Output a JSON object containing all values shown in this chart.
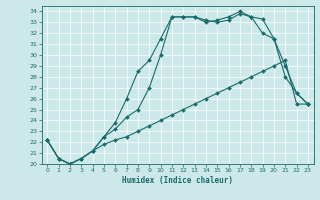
{
  "xlabel": "Humidex (Indice chaleur)",
  "xlim": [
    -0.5,
    23.5
  ],
  "ylim": [
    20,
    34.5
  ],
  "yticks": [
    20,
    21,
    22,
    23,
    24,
    25,
    26,
    27,
    28,
    29,
    30,
    31,
    32,
    33,
    34
  ],
  "xticks": [
    0,
    1,
    2,
    3,
    4,
    5,
    6,
    7,
    8,
    9,
    10,
    11,
    12,
    13,
    14,
    15,
    16,
    17,
    18,
    19,
    20,
    21,
    22,
    23
  ],
  "bg_color": "#cce8e8",
  "line_color": "#1a6b6b",
  "curve1_x": [
    0,
    1,
    2,
    3,
    4,
    5,
    6,
    7,
    8,
    9,
    10,
    11,
    12,
    13,
    14,
    15,
    16,
    17,
    18,
    19,
    20,
    21,
    22,
    23
  ],
  "curve1_y": [
    22.2,
    20.5,
    20.0,
    20.5,
    21.2,
    22.5,
    23.8,
    26.0,
    28.5,
    29.5,
    31.5,
    33.5,
    33.5,
    33.5,
    33.2,
    33.0,
    33.2,
    33.8,
    33.5,
    33.3,
    31.5,
    29.0,
    26.5,
    25.5
  ],
  "curve2_x": [
    0,
    1,
    2,
    3,
    4,
    5,
    6,
    7,
    8,
    9,
    10,
    11,
    12,
    13,
    14,
    15,
    16,
    17,
    18,
    19,
    20,
    21,
    22,
    23
  ],
  "curve2_y": [
    22.2,
    20.5,
    20.0,
    20.5,
    21.2,
    22.5,
    23.2,
    24.3,
    25.0,
    27.0,
    30.0,
    33.5,
    33.5,
    33.5,
    33.0,
    33.2,
    33.5,
    34.0,
    33.5,
    32.0,
    31.5,
    28.0,
    26.5,
    25.5
  ],
  "curve3_x": [
    0,
    1,
    2,
    3,
    4,
    5,
    6,
    7,
    8,
    9,
    10,
    11,
    12,
    13,
    14,
    15,
    16,
    17,
    18,
    19,
    20,
    21,
    22,
    23
  ],
  "curve3_y": [
    22.2,
    20.5,
    20.0,
    20.5,
    21.2,
    21.8,
    22.2,
    22.5,
    23.0,
    23.5,
    24.0,
    24.5,
    25.0,
    25.5,
    26.0,
    26.5,
    27.0,
    27.5,
    28.0,
    28.5,
    29.0,
    29.5,
    25.5,
    25.5
  ]
}
